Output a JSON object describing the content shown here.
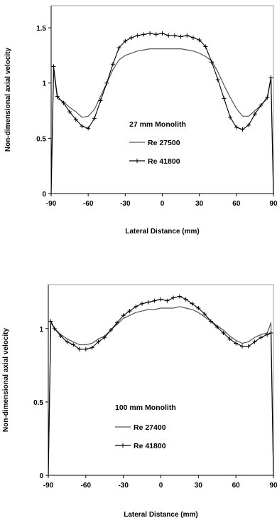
{
  "chart_data": [
    {
      "type": "line",
      "annotation": "27 mm Monolith",
      "xlabel": "Lateral Distance (mm)",
      "ylabel": "Non-dimensional axial velocity",
      "xlim": [
        -90,
        90
      ],
      "ylim": [
        0,
        1.7
      ],
      "xticks": [
        -90,
        -60,
        -30,
        0,
        30,
        60,
        90
      ],
      "yticks": [
        0,
        0.5,
        1,
        1.5
      ],
      "ytick_labels": [
        "0",
        "0.5",
        "1",
        "1.5"
      ],
      "legend_position": "center",
      "grid": false,
      "x": [
        -90,
        -88,
        -85,
        -80,
        -75,
        -70,
        -65,
        -60,
        -55,
        -50,
        -45,
        -40,
        -35,
        -30,
        -25,
        -20,
        -15,
        -10,
        -5,
        0,
        5,
        10,
        15,
        20,
        25,
        30,
        35,
        40,
        45,
        50,
        55,
        60,
        65,
        70,
        75,
        80,
        85,
        88,
        90
      ],
      "series": [
        {
          "name": "Re 27500",
          "marker": "none",
          "color": "#555555",
          "values": [
            0,
            1.12,
            0.86,
            0.83,
            0.78,
            0.74,
            0.69,
            0.7,
            0.76,
            0.88,
            1.0,
            1.12,
            1.21,
            1.25,
            1.27,
            1.29,
            1.3,
            1.31,
            1.31,
            1.31,
            1.31,
            1.31,
            1.31,
            1.3,
            1.29,
            1.27,
            1.24,
            1.2,
            1.1,
            0.98,
            0.87,
            0.77,
            0.7,
            0.7,
            0.75,
            0.8,
            0.86,
            1.04,
            0
          ]
        },
        {
          "name": "Re 41800",
          "marker": "plus",
          "color": "#000000",
          "values": [
            0,
            1.15,
            0.88,
            0.82,
            0.74,
            0.67,
            0.61,
            0.59,
            0.68,
            0.84,
            1.0,
            1.17,
            1.32,
            1.38,
            1.41,
            1.43,
            1.44,
            1.45,
            1.44,
            1.45,
            1.43,
            1.43,
            1.42,
            1.43,
            1.41,
            1.39,
            1.33,
            1.19,
            1.03,
            0.86,
            0.69,
            0.6,
            0.58,
            0.62,
            0.72,
            0.8,
            0.87,
            1.05,
            0
          ]
        }
      ]
    },
    {
      "type": "line",
      "annotation": "100 mm Monolith",
      "xlabel": "Lateral Distance (mm)",
      "ylabel": "Non-dimensional axial velocity",
      "xlim": [
        -90,
        90
      ],
      "ylim": [
        0,
        1.3
      ],
      "xticks": [
        -90,
        -60,
        -30,
        0,
        30,
        60,
        90
      ],
      "yticks": [
        0,
        0.5,
        1
      ],
      "ytick_labels": [
        "0",
        "0.5",
        "1"
      ],
      "legend_position": "center",
      "grid": false,
      "x": [
        -90,
        -88,
        -85,
        -80,
        -75,
        -70,
        -65,
        -60,
        -55,
        -50,
        -45,
        -40,
        -35,
        -30,
        -25,
        -20,
        -15,
        -10,
        -5,
        0,
        5,
        10,
        15,
        20,
        25,
        30,
        35,
        40,
        45,
        50,
        55,
        60,
        65,
        70,
        75,
        80,
        85,
        88,
        90
      ],
      "series": [
        {
          "name": "Re 27400",
          "marker": "none",
          "color": "#555555",
          "values": [
            0,
            1.04,
            1.0,
            0.96,
            0.93,
            0.91,
            0.89,
            0.89,
            0.9,
            0.93,
            0.95,
            0.99,
            1.03,
            1.07,
            1.09,
            1.11,
            1.12,
            1.13,
            1.13,
            1.14,
            1.14,
            1.14,
            1.15,
            1.14,
            1.13,
            1.11,
            1.08,
            1.05,
            1.02,
            0.99,
            0.95,
            0.92,
            0.9,
            0.91,
            0.94,
            0.96,
            0.97,
            1.04,
            0
          ]
        },
        {
          "name": "Re 41800",
          "marker": "plus",
          "color": "#000000",
          "values": [
            0,
            1.05,
            1.0,
            0.95,
            0.91,
            0.89,
            0.86,
            0.86,
            0.87,
            0.91,
            0.94,
            0.99,
            1.04,
            1.09,
            1.12,
            1.15,
            1.17,
            1.18,
            1.19,
            1.2,
            1.19,
            1.21,
            1.22,
            1.2,
            1.17,
            1.14,
            1.1,
            1.05,
            1.01,
            0.97,
            0.93,
            0.9,
            0.88,
            0.88,
            0.91,
            0.94,
            0.96,
            0.97,
            0
          ]
        }
      ]
    }
  ]
}
